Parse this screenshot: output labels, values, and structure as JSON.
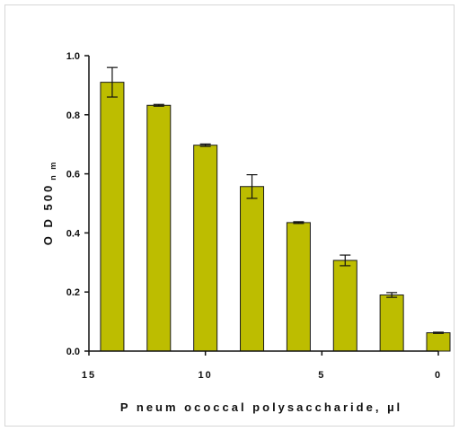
{
  "chart_data": {
    "type": "bar",
    "ylabel": "O D 500",
    "ylabel_subscript": "n m",
    "xlabel": "P neum ococcal polysaccharide, µl",
    "ylim": [
      0,
      1.0
    ],
    "yticks": [
      "0.0",
      "0.2",
      "0.4",
      "0.6",
      "0.8",
      "1.0"
    ],
    "xlim": [
      15,
      0
    ],
    "xticks": [
      "15",
      "10",
      "5",
      "0"
    ],
    "x": [
      14,
      12,
      10,
      8,
      6,
      4,
      2,
      0
    ],
    "values": [
      0.91,
      0.832,
      0.697,
      0.557,
      0.435,
      0.307,
      0.19,
      0.062
    ],
    "errors": [
      0.05,
      0.003,
      0.004,
      0.04,
      0.003,
      0.018,
      0.008,
      0.002
    ],
    "bar_color": "#bdbd00",
    "bar_edge": "#1a1a1a",
    "grid": false,
    "legend": "none"
  }
}
